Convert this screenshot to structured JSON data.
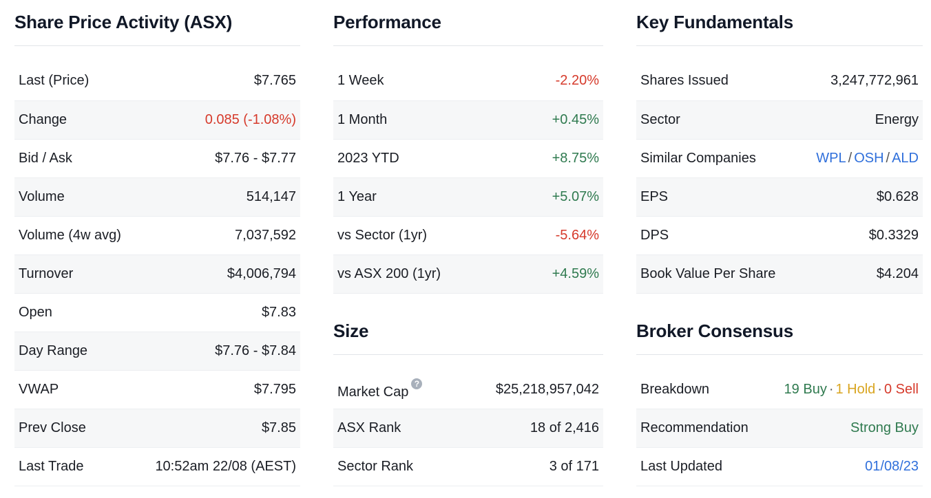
{
  "share_price": {
    "title": "Share Price Activity (ASX)",
    "rows": [
      {
        "label": "Last (Price)",
        "value": "$7.765"
      },
      {
        "label": "Change",
        "value": "0.085 (-1.08%)"
      },
      {
        "label": "Bid / Ask",
        "value": "$7.76 - $7.77"
      },
      {
        "label": "Volume",
        "value": "514,147"
      },
      {
        "label": "Volume (4w avg)",
        "value": "7,037,592"
      },
      {
        "label": "Turnover",
        "value": "$4,006,794"
      },
      {
        "label": "Open",
        "value": "$7.83"
      },
      {
        "label": "Day Range",
        "value": "$7.76 - $7.84"
      },
      {
        "label": "VWAP",
        "value": "$7.795"
      },
      {
        "label": "Prev Close",
        "value": "$7.85"
      },
      {
        "label": "Last Trade",
        "value": "10:52am 22/08 (AEST)"
      }
    ]
  },
  "performance": {
    "title": "Performance",
    "rows": [
      {
        "label": "1 Week",
        "value": "-2.20%"
      },
      {
        "label": "1 Month",
        "value": "+0.45%"
      },
      {
        "label": "2023 YTD",
        "value": "+8.75%"
      },
      {
        "label": "1 Year",
        "value": "+5.07%"
      },
      {
        "label": "vs Sector (1yr)",
        "value": "-5.64%"
      },
      {
        "label": "vs ASX 200 (1yr)",
        "value": "+4.59%"
      }
    ]
  },
  "size": {
    "title": "Size",
    "help_icon": "?",
    "rows": [
      {
        "label": "Market Cap",
        "value": "$25,218,957,042"
      },
      {
        "label": "ASX Rank",
        "value": "18 of 2,416"
      },
      {
        "label": "Sector Rank",
        "value": "3 of 171"
      }
    ]
  },
  "fundamentals": {
    "title": "Key Fundamentals",
    "rows": [
      {
        "label": "Shares Issued",
        "value": "3,247,772,961"
      },
      {
        "label": "Sector",
        "value": "Energy"
      },
      {
        "label": "Similar Companies",
        "links": [
          "WPL",
          "OSH",
          "ALD"
        ],
        "separator": "/"
      },
      {
        "label": "EPS",
        "value": "$0.628"
      },
      {
        "label": "DPS",
        "value": "$0.3329"
      },
      {
        "label": "Book Value Per Share",
        "value": "$4.204"
      }
    ]
  },
  "broker": {
    "title": "Broker Consensus",
    "rows": [
      {
        "label": "Breakdown",
        "buy": "19 Buy",
        "hold": "1 Hold",
        "sell": "0 Sell",
        "dot": "·"
      },
      {
        "label": "Recommendation",
        "value": "Strong Buy"
      },
      {
        "label": "Last Updated",
        "value": "01/08/23"
      }
    ]
  },
  "colors": {
    "negative": "#d63a2b",
    "positive": "#2f7a4f",
    "link": "#2f6fdb",
    "hold": "#d9a520"
  }
}
